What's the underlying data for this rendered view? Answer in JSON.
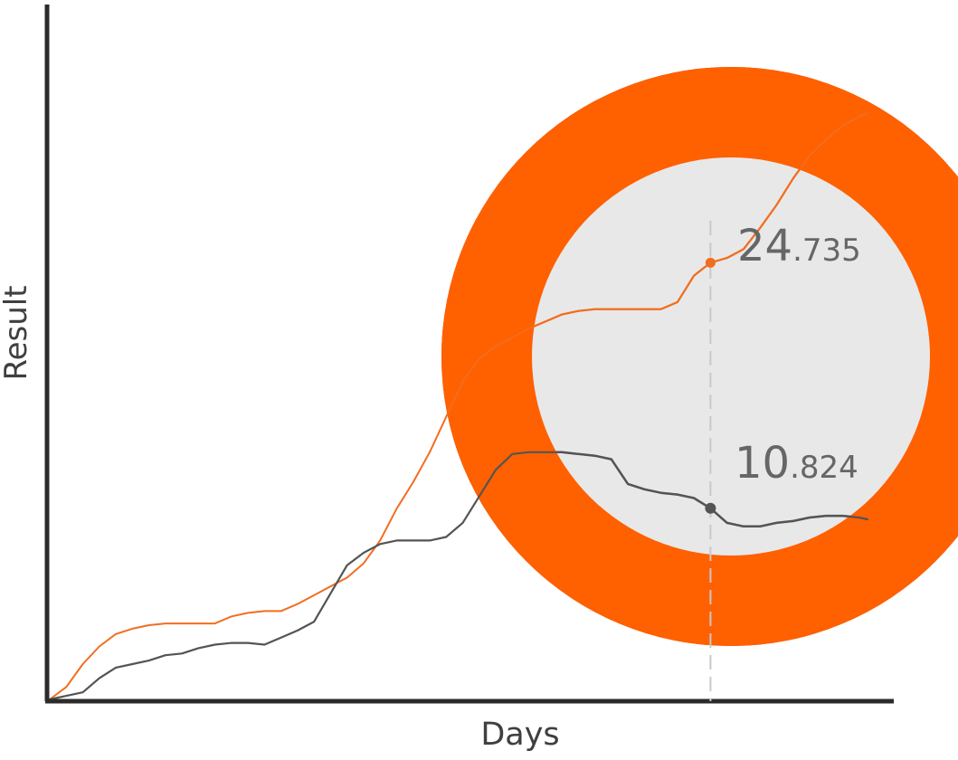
{
  "chart_data": {
    "type": "line",
    "xlabel": "Days",
    "ylabel": "Result",
    "x_range": [
      0,
      100
    ],
    "y_range": [
      0,
      35
    ],
    "marker_x": 80,
    "series": [
      {
        "color": "#f26d1f",
        "values": [
          [
            0,
            0.0
          ],
          [
            2,
            0.7
          ],
          [
            4,
            2.0
          ],
          [
            6,
            3.0
          ],
          [
            8,
            3.7
          ],
          [
            10,
            4.0
          ],
          [
            12,
            4.2
          ],
          [
            14,
            4.3
          ],
          [
            16,
            4.3
          ],
          [
            18,
            4.3
          ],
          [
            20,
            4.3
          ],
          [
            22,
            4.7
          ],
          [
            24,
            4.9
          ],
          [
            26,
            5.0
          ],
          [
            28,
            5.0
          ],
          [
            30,
            5.4
          ],
          [
            32,
            5.9
          ],
          [
            34,
            6.4
          ],
          [
            36,
            6.9
          ],
          [
            38,
            7.7
          ],
          [
            40,
            9.0
          ],
          [
            42,
            10.8
          ],
          [
            44,
            12.3
          ],
          [
            46,
            14.0
          ],
          [
            48,
            16.0
          ],
          [
            50,
            18.0
          ],
          [
            52,
            19.3
          ],
          [
            54,
            20.0
          ],
          [
            56,
            20.5
          ],
          [
            58,
            21.0
          ],
          [
            60,
            21.4
          ],
          [
            62,
            21.8
          ],
          [
            64,
            22.0
          ],
          [
            66,
            22.1
          ],
          [
            68,
            22.1
          ],
          [
            70,
            22.1
          ],
          [
            72,
            22.1
          ],
          [
            74,
            22.1
          ],
          [
            76,
            22.5
          ],
          [
            78,
            24.0
          ],
          [
            80,
            24.735
          ],
          [
            82,
            25.0
          ],
          [
            84,
            25.5
          ],
          [
            86,
            26.7
          ],
          [
            88,
            28.0
          ],
          [
            90,
            29.5
          ],
          [
            92,
            30.8
          ],
          [
            94,
            31.7
          ],
          [
            96,
            32.5
          ],
          [
            98,
            33.0
          ],
          [
            99,
            33.2
          ]
        ]
      },
      {
        "color": "#545454",
        "values": [
          [
            0,
            0.0
          ],
          [
            2,
            0.2
          ],
          [
            4,
            0.4
          ],
          [
            6,
            1.2
          ],
          [
            8,
            1.8
          ],
          [
            10,
            2.0
          ],
          [
            12,
            2.2
          ],
          [
            14,
            2.5
          ],
          [
            16,
            2.6
          ],
          [
            18,
            2.9
          ],
          [
            20,
            3.1
          ],
          [
            22,
            3.2
          ],
          [
            24,
            3.2
          ],
          [
            26,
            3.1
          ],
          [
            28,
            3.5
          ],
          [
            30,
            3.9
          ],
          [
            32,
            4.4
          ],
          [
            34,
            6.0
          ],
          [
            36,
            7.6
          ],
          [
            38,
            8.3
          ],
          [
            40,
            8.8
          ],
          [
            42,
            9.0
          ],
          [
            44,
            9.0
          ],
          [
            46,
            9.0
          ],
          [
            48,
            9.2
          ],
          [
            50,
            10.0
          ],
          [
            52,
            11.5
          ],
          [
            54,
            13.0
          ],
          [
            56,
            13.9
          ],
          [
            58,
            14.0
          ],
          [
            60,
            14.0
          ],
          [
            62,
            14.0
          ],
          [
            64,
            13.9
          ],
          [
            66,
            13.8
          ],
          [
            68,
            13.6
          ],
          [
            70,
            12.2
          ],
          [
            72,
            11.9
          ],
          [
            74,
            11.7
          ],
          [
            76,
            11.6
          ],
          [
            78,
            11.4
          ],
          [
            80,
            10.824
          ],
          [
            82,
            10.0
          ],
          [
            84,
            9.8
          ],
          [
            86,
            9.8
          ],
          [
            88,
            10.0
          ],
          [
            90,
            10.1
          ],
          [
            92,
            10.3
          ],
          [
            94,
            10.4
          ],
          [
            96,
            10.4
          ],
          [
            98,
            10.3
          ],
          [
            99,
            10.2
          ]
        ]
      }
    ],
    "readouts": [
      {
        "whole": "24",
        "fraction": ".735"
      },
      {
        "whole": "10",
        "fraction": ".824"
      }
    ],
    "lens": {
      "ring_color": "#ff6000",
      "ring_shadow": "#c44b00",
      "inner_color": "#e8e8e8"
    }
  }
}
